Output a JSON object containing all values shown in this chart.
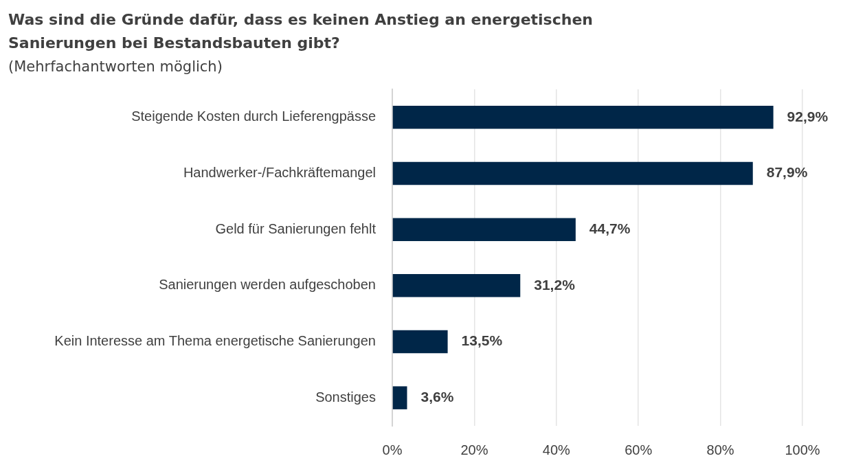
{
  "chart_data": {
    "type": "bar",
    "orientation": "horizontal",
    "title": "Was sind die Gründe dafür, dass es keinen Anstieg an energetischen Sanierungen bei Bestandsbauten gibt?",
    "subtitle": "(Mehrfachantworten möglich)",
    "categories": [
      "Steigende Kosten durch Lieferengpässe",
      "Handwerker-/Fachkräftemangel",
      "Geld für Sanierungen fehlt",
      "Sanierungen werden aufgeschoben",
      "Kein Interesse am Thema energetische Sanierungen",
      "Sonstiges"
    ],
    "values": [
      92.9,
      87.9,
      44.7,
      31.2,
      13.5,
      3.6
    ],
    "value_labels": [
      "92,9%",
      "87,9%",
      "44,7%",
      "31,2%",
      "13,5%",
      "3,6%"
    ],
    "color": "#002648",
    "xlim": [
      0,
      100
    ],
    "xticks": [
      {
        "value": 0,
        "label": "0%"
      },
      {
        "value": 20,
        "label": "20%"
      },
      {
        "value": 40,
        "label": "40%"
      },
      {
        "value": 60,
        "label": "60%"
      },
      {
        "value": 80,
        "label": "80%"
      },
      {
        "value": 100,
        "label": "100%"
      }
    ],
    "grid": "x",
    "legend": false
  }
}
